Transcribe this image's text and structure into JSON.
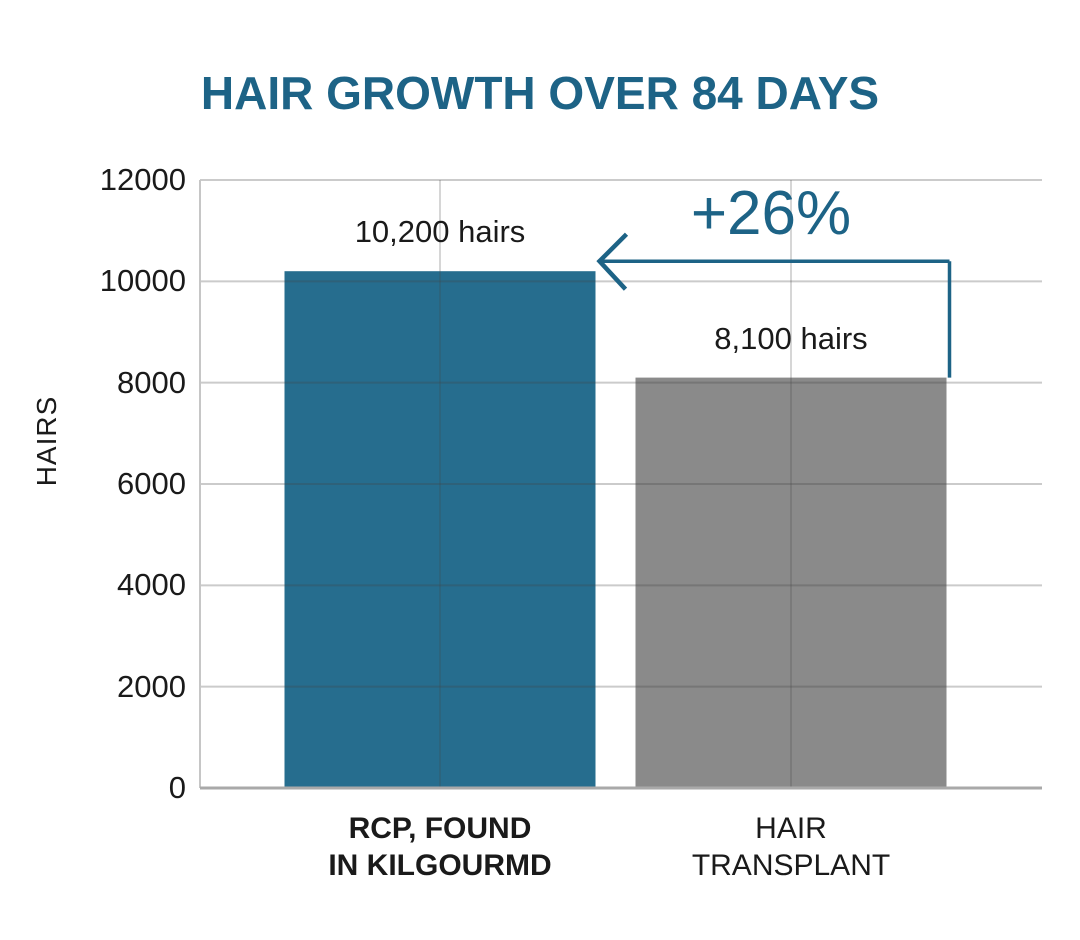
{
  "chart_data": {
    "type": "bar",
    "title": "HAIR GROWTH OVER 84 DAYS",
    "xlabel": "",
    "ylabel": "HAIRS",
    "ylim": [
      0,
      12000
    ],
    "ytick_interval": 2000,
    "yticks": [
      0,
      2000,
      4000,
      6000,
      8000,
      10000,
      12000
    ],
    "ytick_labels": [
      "0",
      "2000",
      "4000",
      "6000",
      "8000",
      "10000",
      "12000"
    ],
    "grid": true,
    "legend": "none",
    "categories": [
      "RCP, FOUND IN KILGOURMD",
      "HAIR TRANSPLANT"
    ],
    "category_label_lines": [
      [
        "RCP, FOUND",
        "IN KILGOURMD"
      ],
      [
        "HAIR",
        "TRANSPLANT"
      ]
    ],
    "category_label_bold": [
      true,
      false
    ],
    "values": [
      10200,
      8100
    ],
    "value_labels": [
      "10,200 hairs",
      "8,100 hairs"
    ],
    "bar_colors": [
      "#266d8e",
      "#8a8a8a"
    ],
    "annotation": {
      "label": "+26%",
      "color": "#1d6386"
    },
    "colors": {
      "accent_teal": "#1d6386",
      "bar_blue": "#266d8e",
      "bar_gray": "#8a8a8a",
      "text": "#1a1a1a",
      "gridline": "#c9c9c9",
      "axis_bottom": "#a9a9a9",
      "axis_left": "#c6c6c6"
    }
  }
}
